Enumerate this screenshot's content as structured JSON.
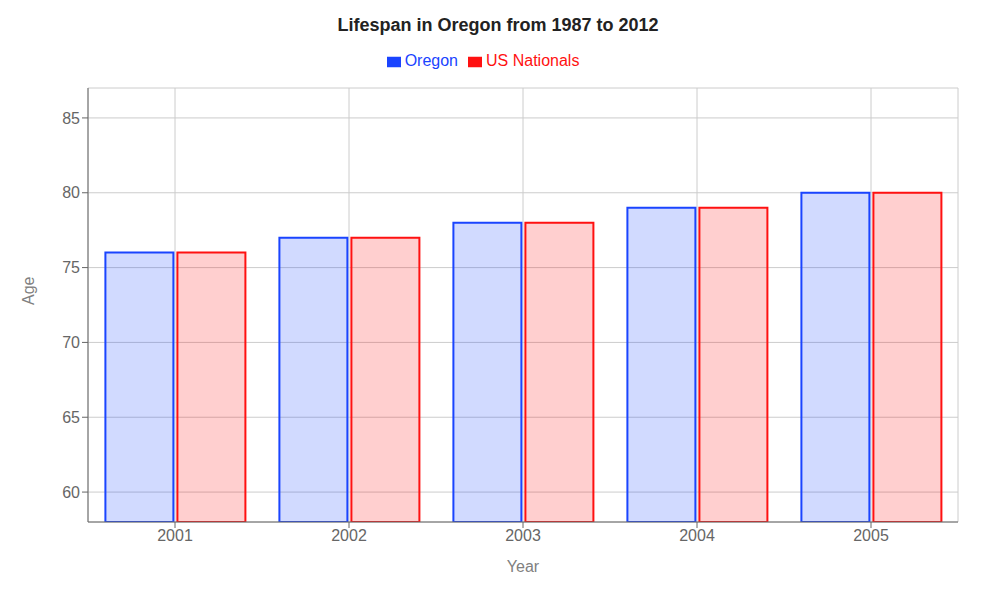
{
  "chart_data": {
    "type": "bar",
    "title": "Lifespan in Oregon from 1987 to 2012",
    "xlabel": "Year",
    "ylabel": "Age",
    "categories": [
      "2001",
      "2002",
      "2003",
      "2004",
      "2005"
    ],
    "series": [
      {
        "name": "Oregon",
        "color": "#1a44ff",
        "values": [
          76,
          77,
          78,
          79,
          80
        ]
      },
      {
        "name": "US Nationals",
        "color": "#ff1111",
        "values": [
          76,
          77,
          78,
          79,
          80
        ]
      }
    ],
    "ylim": [
      58,
      87
    ],
    "yticks": [
      60,
      65,
      70,
      75,
      80,
      85
    ],
    "grid": true,
    "legend": "top"
  }
}
